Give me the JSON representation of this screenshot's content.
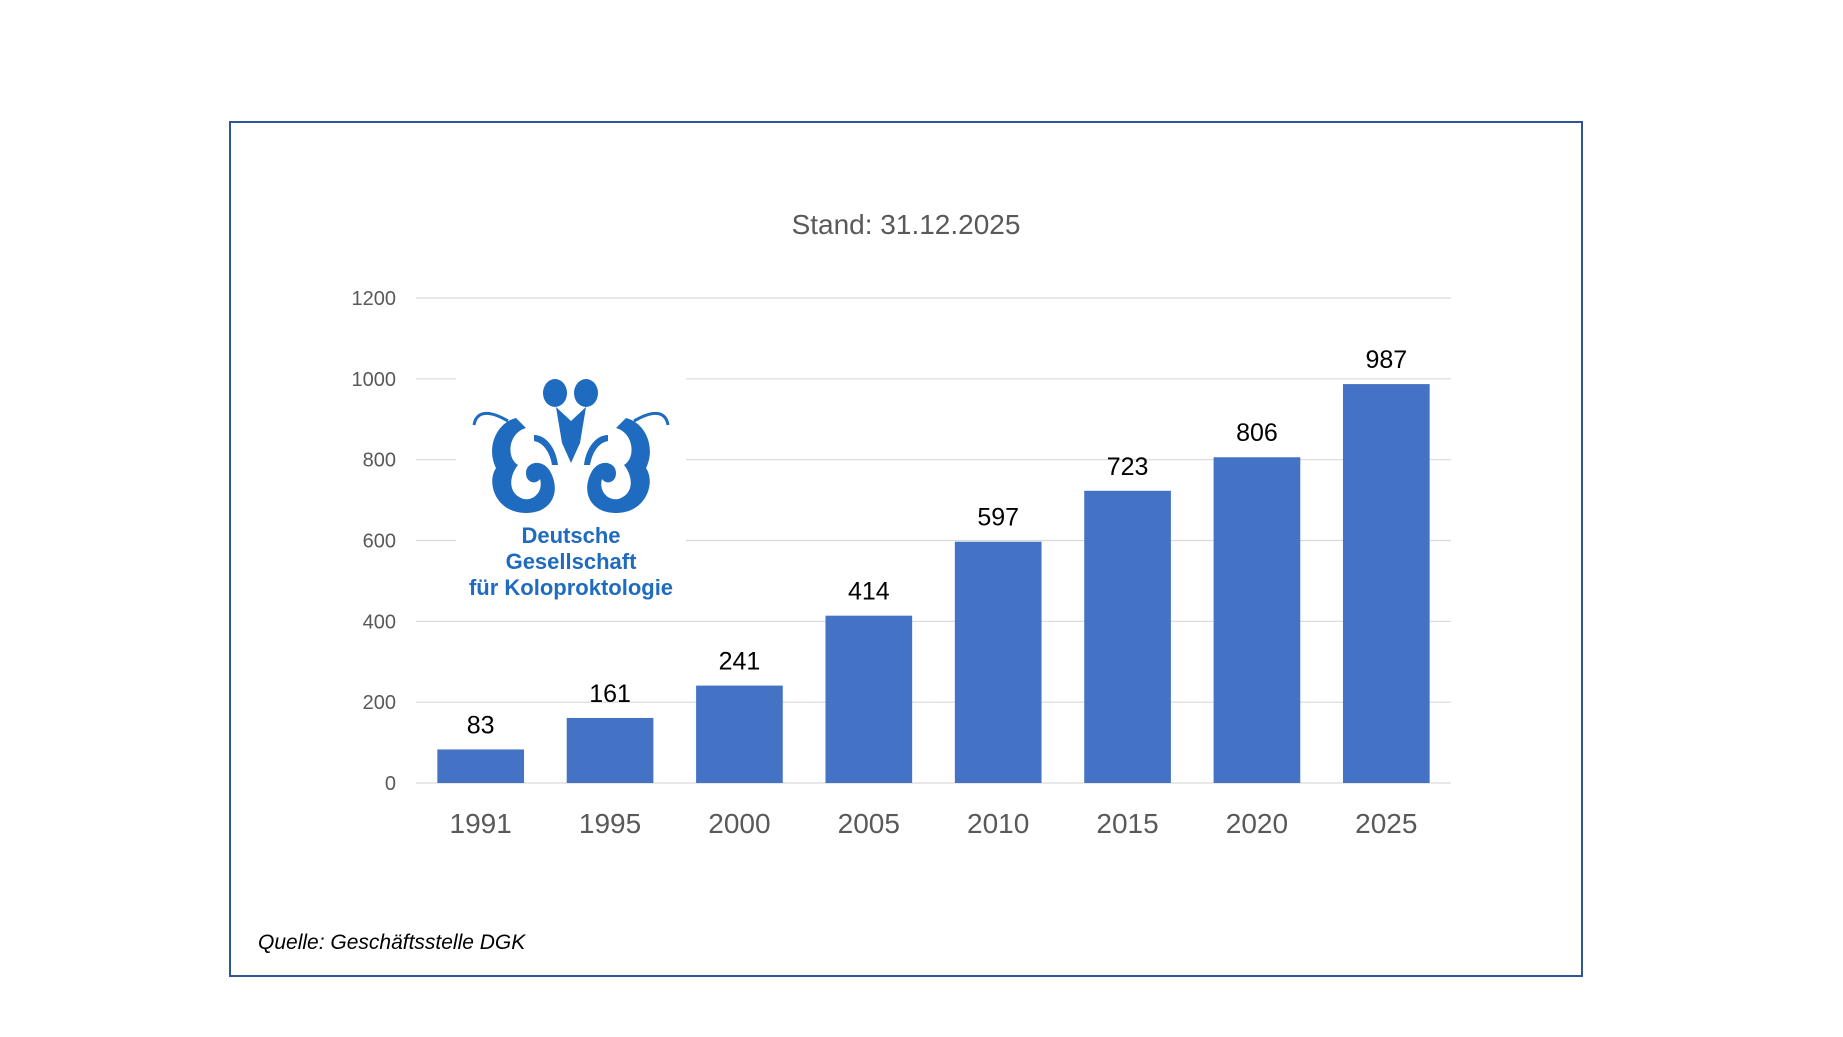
{
  "chart_data": {
    "type": "bar",
    "subtitle": "Stand: 31.12.2025",
    "categories": [
      "1991",
      "1995",
      "2000",
      "2005",
      "2010",
      "2015",
      "2020",
      "2025"
    ],
    "values": [
      83,
      161,
      241,
      414,
      597,
      723,
      806,
      987
    ],
    "ylim": [
      0,
      1200
    ],
    "yticks": [
      "0",
      "200",
      "400",
      "600",
      "800",
      "1000",
      "1200"
    ],
    "grid": true,
    "bar_color": "#4472c4",
    "data_labels": true
  },
  "logo": {
    "line1": "Deutsche Gesellschaft",
    "line2": "für Koloproktologie",
    "color": "#1f6bbf"
  },
  "source": "Quelle: Geschäftsstelle DGK"
}
